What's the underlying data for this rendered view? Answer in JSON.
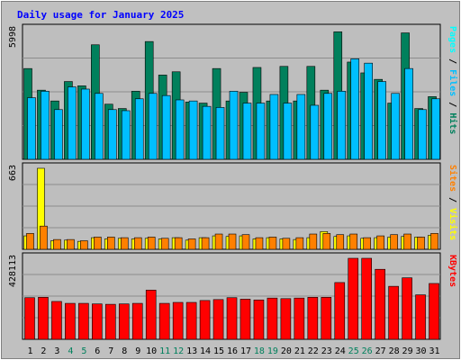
{
  "chart_data": {
    "type": "bar",
    "title": "Daily usage for January 2025",
    "categories": [
      "1",
      "2",
      "3",
      "4",
      "5",
      "6",
      "7",
      "8",
      "9",
      "10",
      "11",
      "12",
      "13",
      "14",
      "15",
      "16",
      "17",
      "18",
      "19",
      "20",
      "21",
      "22",
      "23",
      "24",
      "25",
      "26",
      "27",
      "28",
      "29",
      "30",
      "31"
    ],
    "weekend_days": [
      "4",
      "5",
      "11",
      "12",
      "18",
      "19",
      "25",
      "26"
    ],
    "panels": [
      {
        "id": "pages-files-hits",
        "max_label": "5998",
        "ymax": 5998,
        "series": [
          {
            "name": "Hits",
            "color": "#00805c",
            "values": [
              4200,
              3200,
              2700,
              3600,
              3400,
              5300,
              2550,
              2350,
              3150,
              5450,
              3900,
              4050,
              2650,
              2600,
              4200,
              2700,
              3100,
              4250,
              2700,
              4300,
              2700,
              4300,
              3200,
              5900,
              4500,
              4000,
              3700,
              2600,
              5850,
              2350,
              2900
            ]
          },
          {
            "name": "Files",
            "color": "#00bfff",
            "values": [
              2850,
              3150,
              2300,
              3350,
              3250,
              3050,
              2300,
              2250,
              2800,
              3050,
              2950,
              2750,
              2700,
              2450,
              2400,
              3150,
              2600,
              2600,
              3000,
              2600,
              3000,
              2500,
              3050,
              3150,
              4650,
              4450,
              3600,
              3050,
              4200,
              2300,
              2800
            ]
          },
          {
            "name": "Pages",
            "color": "#00ffff",
            "values": [
              0,
              0,
              0,
              0,
              0,
              0,
              0,
              0,
              0,
              0,
              0,
              0,
              0,
              0,
              0,
              0,
              0,
              0,
              0,
              0,
              0,
              0,
              0,
              0,
              0,
              0,
              0,
              0,
              0,
              0,
              0
            ]
          }
        ]
      },
      {
        "id": "sites-visits",
        "max_label": "663",
        "ymax": 663,
        "series": [
          {
            "name": "Visits",
            "color": "#ffff00",
            "values": [
              110,
              663,
              70,
              75,
              65,
              95,
              85,
              90,
              85,
              90,
              85,
              95,
              75,
              95,
              110,
              105,
              110,
              85,
              95,
              85,
              80,
              95,
              145,
              105,
              110,
              90,
              95,
              100,
              105,
              100,
              115
            ]
          },
          {
            "name": "Sites",
            "color": "#ff8000",
            "values": [
              130,
              190,
              80,
              80,
              70,
              100,
              100,
              95,
              95,
              100,
              90,
              95,
              85,
              95,
              125,
              125,
              120,
              95,
              100,
              90,
              95,
              125,
              130,
              120,
              125,
              95,
              110,
              120,
              125,
              100,
              130
            ]
          }
        ]
      },
      {
        "id": "kbytes",
        "max_label": "428113",
        "ymax": 428113,
        "series": [
          {
            "name": "KBytes",
            "color": "#ff0000",
            "values": [
              220000,
              222000,
              200000,
              190000,
              190000,
              187000,
              185000,
              187000,
              190000,
              260000,
              190000,
              195000,
              195000,
              205000,
              210000,
              220000,
              212000,
              208000,
              218000,
              215000,
              218000,
              222000,
              222000,
              300000,
              428113,
              428113,
              370000,
              280000,
              325000,
              235000,
              295000
            ]
          }
        ]
      }
    ],
    "axis_labels": [
      {
        "panel": 0,
        "parts": [
          {
            "text": "Pages",
            "color": "#00ffff"
          },
          {
            "text": " / ",
            "color": "#000000"
          },
          {
            "text": "Files",
            "color": "#00bfff"
          },
          {
            "text": " / ",
            "color": "#000000"
          },
          {
            "text": "Hits",
            "color": "#00805c"
          }
        ]
      },
      {
        "panel": 1,
        "parts": [
          {
            "text": "Sites",
            "color": "#ff8000"
          },
          {
            "text": " / ",
            "color": "#000000"
          },
          {
            "text": "Visits",
            "color": "#ffff00"
          }
        ]
      },
      {
        "panel": 2,
        "parts": [
          {
            "text": "KBytes",
            "color": "#ff0000"
          }
        ]
      }
    ],
    "colors": {
      "title": "#0000ff",
      "background": "#c0c0c0",
      "plot_bg": "#bebebe",
      "weekday_label": "#000000",
      "weekend_label": "#00805c"
    },
    "grid": true
  }
}
